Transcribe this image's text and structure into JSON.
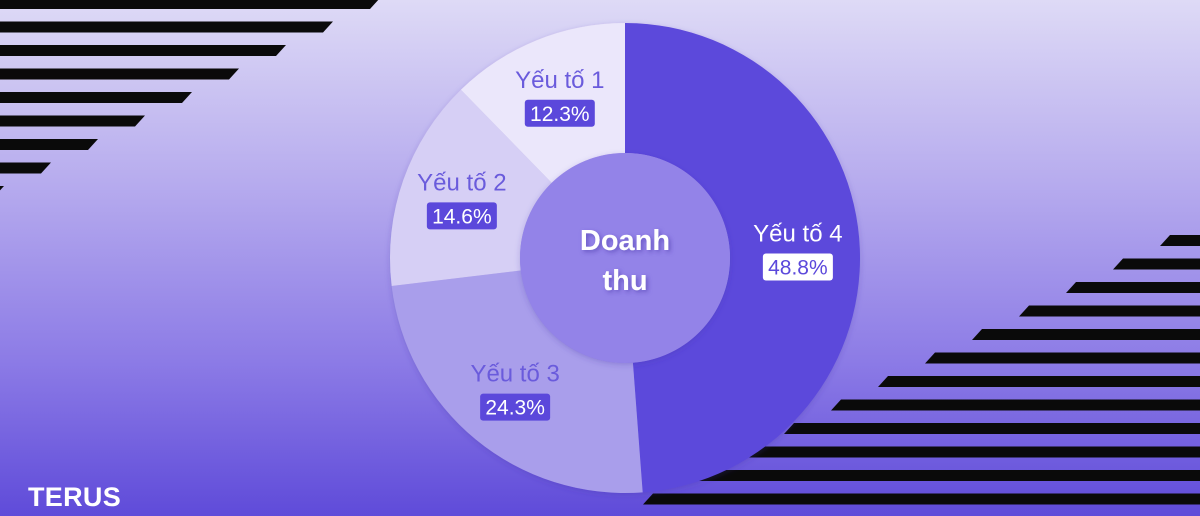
{
  "chart_data": {
    "type": "pie",
    "variant": "donut",
    "center_label": [
      "Doanh",
      "thu"
    ],
    "slices": [
      {
        "label": "Yếu tố 1",
        "value": 12.3,
        "percent_label": "12.3%",
        "color": "#ebe7fb"
      },
      {
        "label": "Yếu tố 2",
        "value": 14.6,
        "percent_label": "14.6%",
        "color": "#d6cff5"
      },
      {
        "label": "Yếu tố 3",
        "value": 24.3,
        "percent_label": "24.3%",
        "color": "#a99eeb"
      },
      {
        "label": "Yếu tố 4",
        "value": 48.8,
        "percent_label": "48.8%",
        "color": "#5b48db"
      }
    ],
    "start_angle": "12 o'clock",
    "direction": "clockwise from Yếu tố 4"
  },
  "brand": {
    "name": "TERUS"
  },
  "colors": {
    "accent": "#5b48db",
    "label_dark_text": "#6a5bdc",
    "center_fill": "#9383e8",
    "stripes": "#0a0a0a"
  }
}
